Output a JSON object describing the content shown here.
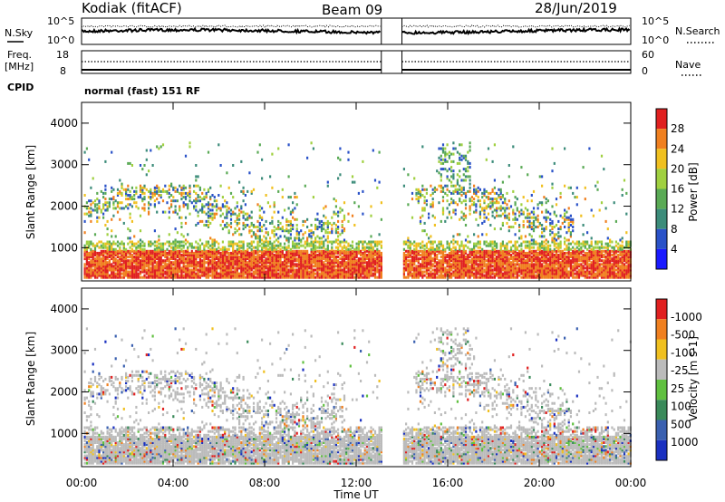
{
  "header": {
    "station": "Kodiak (fitACF)",
    "beam": "Beam 09",
    "date": "28/Jun/2019"
  },
  "noise_panel": {
    "left_label": "N.Sky",
    "right_label": "N.Search",
    "left_ticks": [
      "10^5",
      "10^0"
    ],
    "right_ticks": [
      "10^5",
      "10^0"
    ]
  },
  "freq_panel": {
    "left_label_1": "Freq.",
    "left_label_2": "[MHz]",
    "left_ticks": [
      "18",
      "8"
    ],
    "right_ticks": [
      "60",
      "0"
    ],
    "right_label": "Nave",
    "cpid_label": "CPID",
    "mode_text": "normal (fast) 151 RF"
  },
  "chart_data": [
    {
      "type": "heatmap",
      "name": "power",
      "ylabel": "Slant Range [km]",
      "yticks": [
        1000,
        2000,
        3000,
        4000
      ],
      "ylim": [
        200,
        4500
      ],
      "xlim": [
        0,
        24
      ],
      "data_gap_hours": [
        13.1,
        14.0
      ],
      "colorbar": {
        "label": "Power [dB]",
        "ticks": [
          "4",
          "8",
          "12",
          "16",
          "20",
          "24",
          "28"
        ],
        "colors": [
          "#1a1aff",
          "#2a52c8",
          "#3c8c7a",
          "#5aaa55",
          "#a0d040",
          "#f0c020",
          "#f08020",
          "#e02020"
        ]
      }
    },
    {
      "type": "heatmap",
      "name": "velocity",
      "ylabel": "Slant Range [km]",
      "yticks": [
        1000,
        2000,
        3000,
        4000
      ],
      "ylim": [
        200,
        4500
      ],
      "xlim": [
        0,
        24
      ],
      "xlabel": "Time UT",
      "xticks": [
        "00:00",
        "04:00",
        "08:00",
        "12:00",
        "16:00",
        "20:00",
        "00:00"
      ],
      "colorbar": {
        "label": "Velocity [m s-1]",
        "ticks": [
          "1000",
          "500",
          "100",
          "25",
          "-25",
          "-100",
          "-500",
          "-1000"
        ],
        "colors": [
          "#1a30c0",
          "#3a60b0",
          "#3a8a5a",
          "#60c040",
          "#bbbbbb",
          "#f0c020",
          "#f08020",
          "#e02020"
        ]
      }
    }
  ]
}
